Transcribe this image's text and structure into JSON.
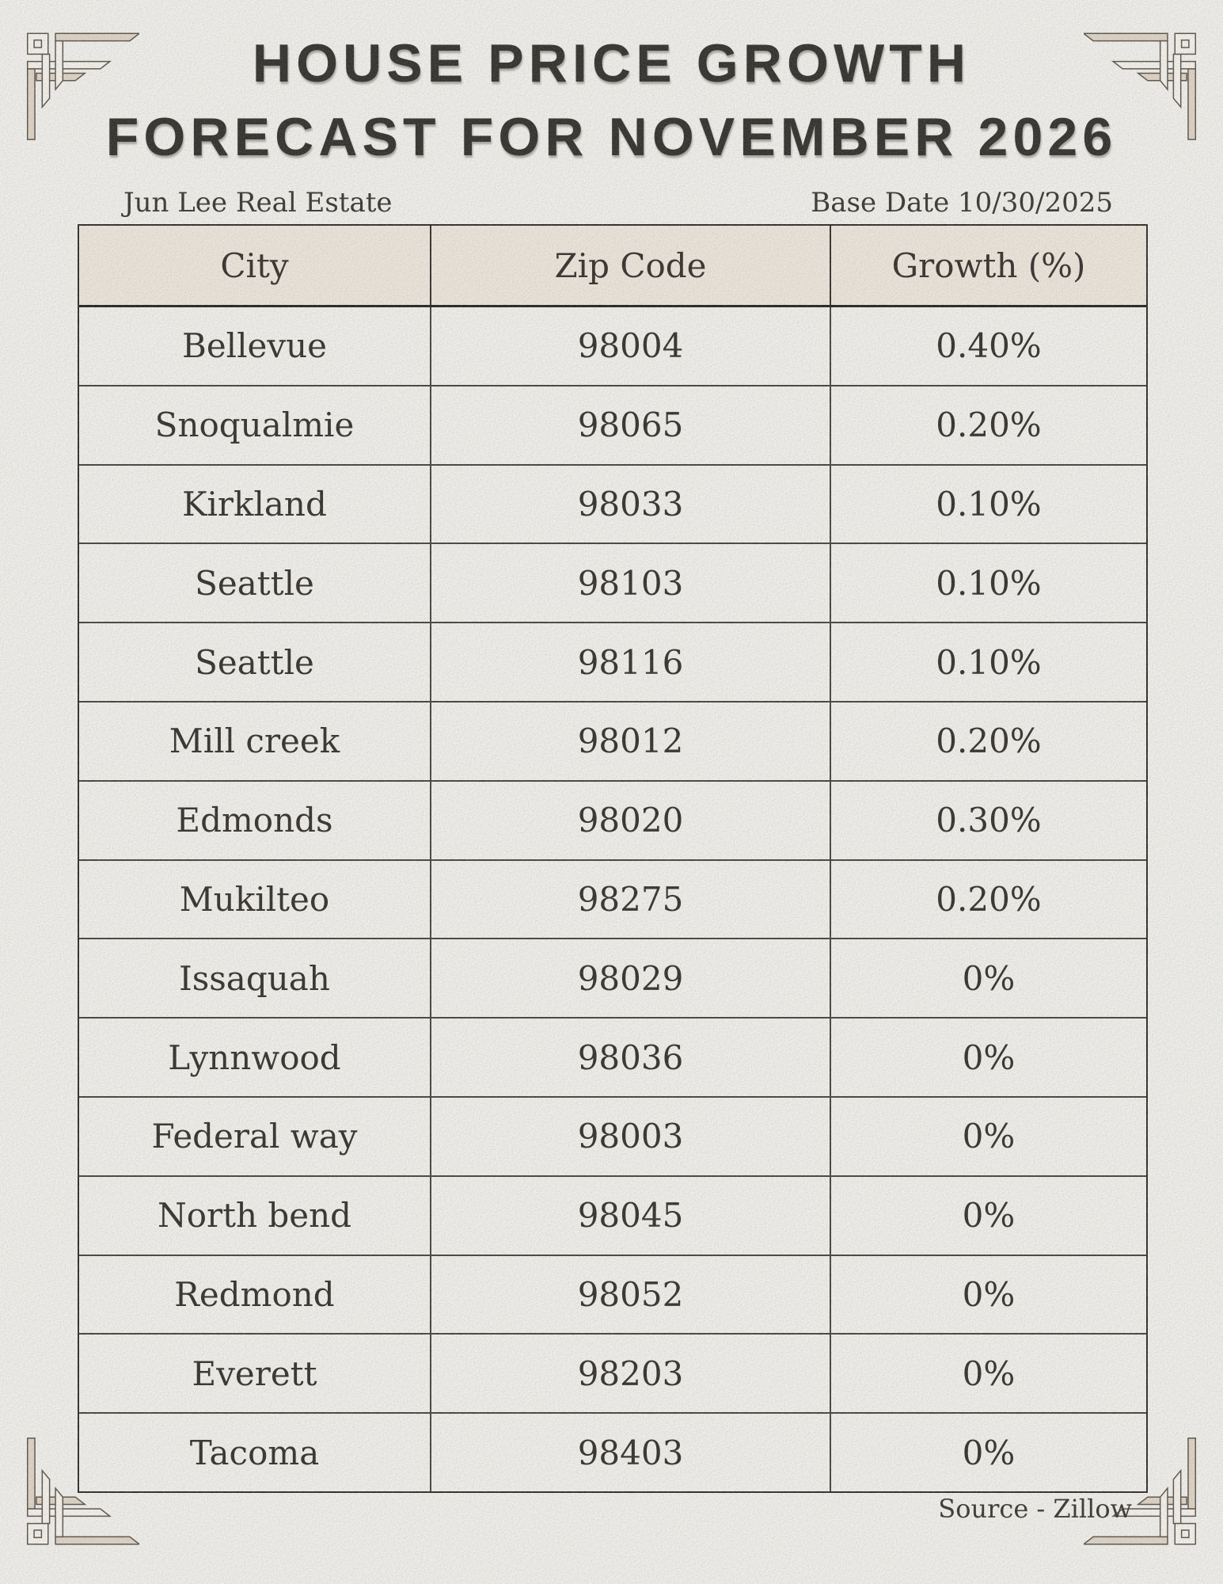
{
  "title": {
    "line1": "HOUSE PRICE GROWTH",
    "line2": "FORECAST FOR NOVEMBER 2026"
  },
  "subtitle": {
    "left": "Jun Lee Real Estate",
    "right": "Base Date 10/30/2025"
  },
  "table": {
    "columns": [
      "City",
      "Zip Code",
      "Growth (%)"
    ],
    "rows": [
      [
        "Bellevue",
        "98004",
        "0.40%"
      ],
      [
        "Snoqualmie",
        "98065",
        "0.20%"
      ],
      [
        "Kirkland",
        "98033",
        "0.10%"
      ],
      [
        "Seattle",
        "98103",
        "0.10%"
      ],
      [
        "Seattle",
        "98116",
        "0.10%"
      ],
      [
        "Mill creek",
        "98012",
        "0.20%"
      ],
      [
        "Edmonds",
        "98020",
        "0.30%"
      ],
      [
        "Mukilteo",
        "98275",
        "0.20%"
      ],
      [
        "Issaquah",
        "98029",
        "0%"
      ],
      [
        "Lynnwood",
        "98036",
        "0%"
      ],
      [
        "Federal way",
        "98003",
        "0%"
      ],
      [
        "North bend",
        "98045",
        "0%"
      ],
      [
        "Redmond",
        "98052",
        "0%"
      ],
      [
        "Everett",
        "98203",
        "0%"
      ],
      [
        "Tacoma",
        "98403",
        "0%"
      ]
    ]
  },
  "footer": {
    "source": "Source - Zillow"
  },
  "colors": {
    "paper": "#f0efeb",
    "header_bg": "#ece5db",
    "text": "#34312d",
    "border": "#47433e",
    "outer_border": "#2f2d29",
    "ornament_fill_cream": "#f4f1eb",
    "ornament_fill_beige": "#ded4c6",
    "ornament_stroke": "#5a544b"
  },
  "decorations": {
    "corner_style": "art-deco-corner-ornament"
  }
}
